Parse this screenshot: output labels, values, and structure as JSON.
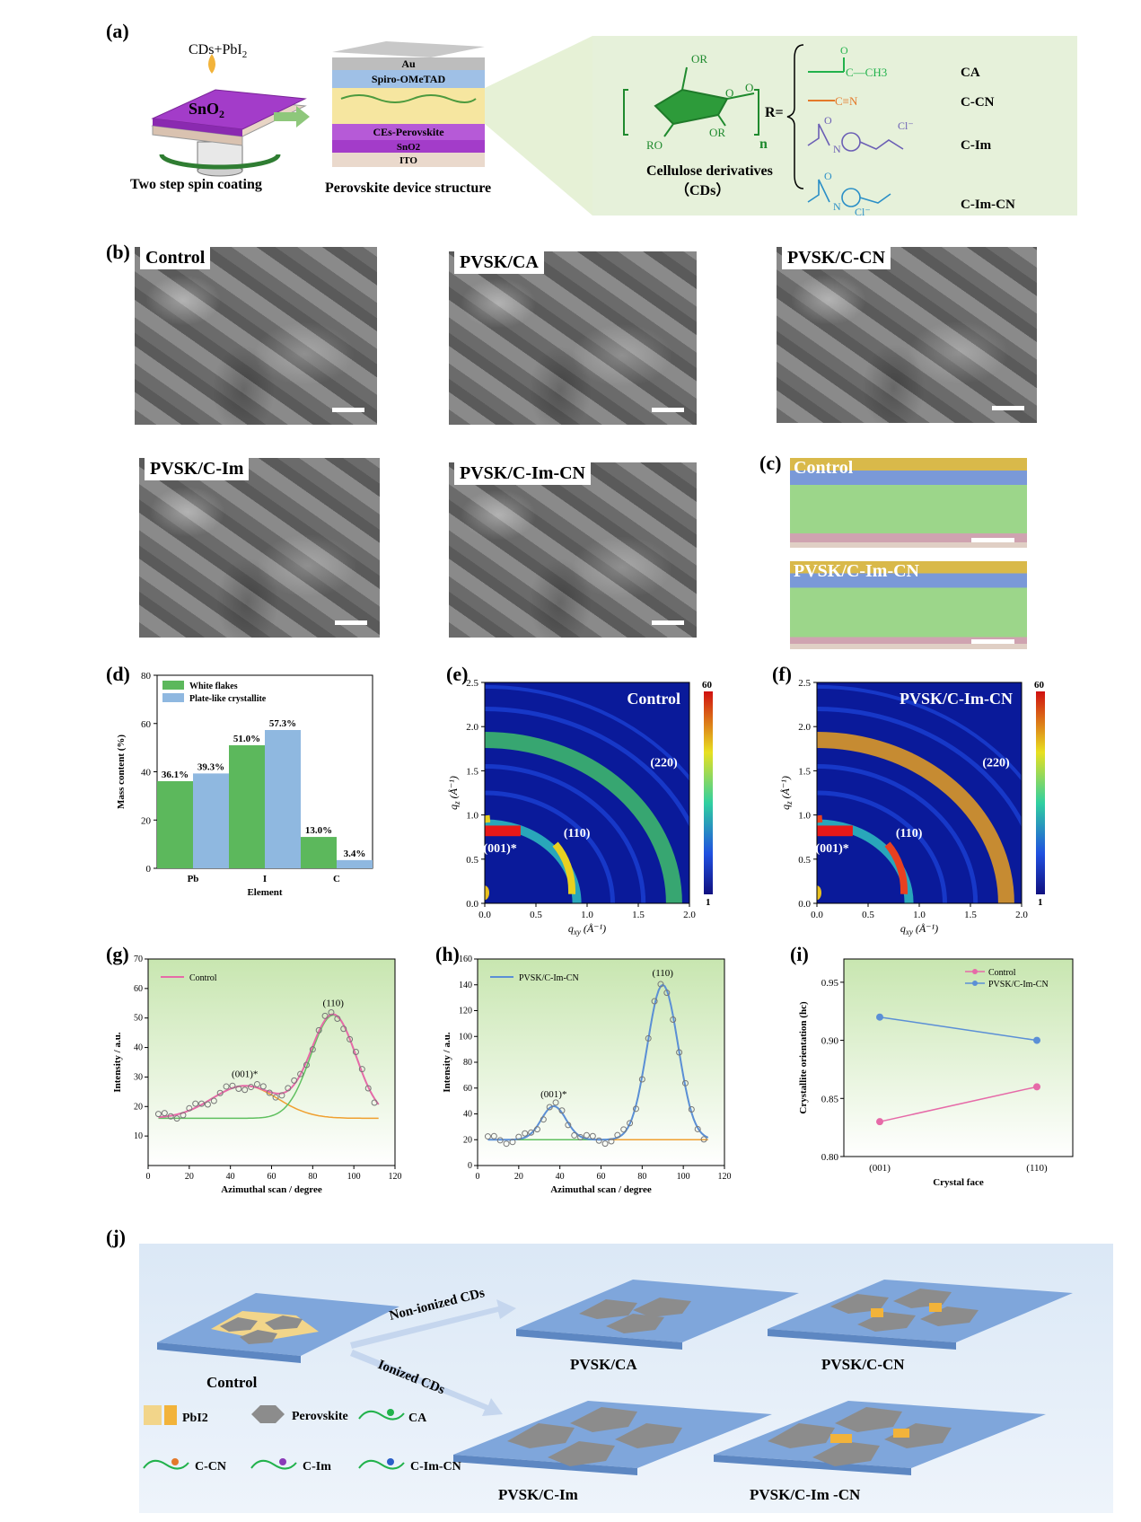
{
  "panels": {
    "a": {
      "label": "(a)",
      "precursor": "CDs+PbI",
      "precursor_sub": "2",
      "substrate": "SnO",
      "substrate_sub": "2",
      "step_caption": "Two step spin coating",
      "device_caption": "Perovskite device structure",
      "layers": [
        "Au",
        "Spiro-OMeTAD",
        "CEs-Perovskite",
        "SnO2",
        "ITO"
      ],
      "chem": {
        "or_top": "OR",
        "or_left": "RO",
        "or_right": "OR",
        "o_ring": "O",
        "o_link": "O",
        "n": "n",
        "r_eq": "R=",
        "caption_1": "Cellulose derivatives",
        "caption_2": "（CDs）",
        "groups": [
          {
            "name": "CA",
            "formula": "C—CH3",
            "o": "O"
          },
          {
            "name": "C-CN",
            "formula": "C≡N"
          },
          {
            "name": "C-Im",
            "ion": "Cl⁻",
            "n_label": "N",
            "o": "O"
          },
          {
            "name": "C-Im-CN",
            "ion": "Cl⁻",
            "n_label": "N",
            "o": "O"
          }
        ]
      }
    },
    "b": {
      "label": "(b)",
      "images": [
        "Control",
        "PVSK/CA",
        "PVSK/C-CN",
        "PVSK/C-Im",
        "PVSK/C-Im-CN"
      ]
    },
    "c": {
      "label": "(c)",
      "images": [
        "Control",
        "PVSK/C-Im-CN"
      ]
    },
    "d": {
      "label": "(d)",
      "chart_data": {
        "type": "bar",
        "categories": [
          "Pb",
          "I",
          "C"
        ],
        "series": [
          {
            "name": "White flakes",
            "values": [
              36.1,
              51.0,
              13.0
            ],
            "labels": [
              "36.1%",
              "51.0%",
              "13.0%"
            ],
            "color": "#5cb85c"
          },
          {
            "name": "Plate-like crystallite",
            "values": [
              39.3,
              57.3,
              3.4
            ],
            "labels": [
              "39.3%",
              "57.3%",
              "3.4%"
            ],
            "color": "#8fb8e0"
          }
        ],
        "xlabel": "Element",
        "ylabel": "Mass content (%)",
        "ylim": [
          0,
          80
        ],
        "yticks": [
          0,
          20,
          40,
          60,
          80
        ],
        "legend": "top-left"
      }
    },
    "e": {
      "label": "(e)",
      "chart_data": {
        "type": "heatmap",
        "title": "Control",
        "xlabel": "q",
        "xlabel_sub": "xy",
        "xlabel_unit": "(Å⁻¹)",
        "ylabel": "q",
        "ylabel_sub": "z",
        "ylabel_unit": "(Å⁻¹)",
        "xlim": [
          0,
          2.0
        ],
        "ylim": [
          0,
          2.5
        ],
        "xticks": [
          "0.0",
          "0.5",
          "1.0",
          "1.5",
          "2.0"
        ],
        "yticks": [
          "0.0",
          "0.5",
          "1.0",
          "1.5",
          "2.0",
          "2.5"
        ],
        "colorbar": {
          "max": "60",
          "min": "1"
        },
        "annotations": [
          "(220)",
          "(110)",
          "(001)*"
        ]
      }
    },
    "f": {
      "label": "(f)",
      "chart_data": {
        "type": "heatmap",
        "title": "PVSK/C-Im-CN",
        "xlabel": "q",
        "xlabel_sub": "xy",
        "xlabel_unit": "(Å⁻¹)",
        "ylabel": "q",
        "ylabel_sub": "z",
        "ylabel_unit": "(Å⁻¹)",
        "xlim": [
          0,
          2.0
        ],
        "ylim": [
          0,
          2.5
        ],
        "xticks": [
          "0.0",
          "0.5",
          "1.0",
          "1.5",
          "2.0"
        ],
        "yticks": [
          "0.0",
          "0.5",
          "1.0",
          "1.5",
          "2.0",
          "2.5"
        ],
        "colorbar": {
          "max": "60",
          "min": "1"
        },
        "annotations": [
          "(220)",
          "(110)",
          "(001)*"
        ]
      }
    },
    "g": {
      "label": "(g)",
      "chart_data": {
        "type": "scatter",
        "legend": [
          "Control"
        ],
        "xlabel": "Azimuthal scan / degree",
        "ylabel": "Intensity / a.u.",
        "xlim": [
          0,
          120
        ],
        "ylim": [
          0,
          70
        ],
        "xticks": [
          0,
          20,
          40,
          60,
          80,
          100,
          120
        ],
        "yticks": [
          10,
          20,
          30,
          40,
          50,
          60,
          70
        ],
        "peak_labels": [
          "(001)*",
          "(110)"
        ],
        "peaks": [
          {
            "center": 47,
            "height": 11,
            "width": 16
          },
          {
            "center": 90,
            "height": 35,
            "width": 11
          }
        ],
        "baseline": 16
      }
    },
    "h": {
      "label": "(h)",
      "chart_data": {
        "type": "scatter",
        "legend": [
          "PVSK/C-Im-CN"
        ],
        "xlabel": "Azimuthal scan / degree",
        "ylabel": "Intensity / a.u.",
        "xlim": [
          0,
          120
        ],
        "ylim": [
          0,
          160
        ],
        "xticks": [
          0,
          20,
          40,
          60,
          80,
          100,
          120
        ],
        "yticks": [
          0,
          20,
          40,
          60,
          80,
          100,
          120,
          140,
          160
        ],
        "peak_labels": [
          "(001)*",
          "(110)"
        ],
        "peaks": [
          {
            "center": 37,
            "height": 26,
            "width": 6
          },
          {
            "center": 90,
            "height": 120,
            "width": 7.5
          }
        ],
        "baseline": 20
      }
    },
    "i": {
      "label": "(i)",
      "chart_data": {
        "type": "line",
        "categories": [
          "(001)",
          "(110)"
        ],
        "series": [
          {
            "name": "Control",
            "values": [
              0.83,
              0.86
            ],
            "color": "#e66aa8"
          },
          {
            "name": "PVSK/C-Im-CN",
            "values": [
              0.92,
              0.9
            ],
            "color": "#5b8fd6"
          }
        ],
        "xlabel": "Crystal face",
        "ylabel": "Crystallite orientation (hc)",
        "ylim": [
          0.8,
          0.97
        ],
        "yticks": [
          "0.80",
          "0.85",
          "0.90",
          "0.95"
        ],
        "legend": "top-right"
      }
    },
    "j": {
      "label": "(j)",
      "arrow_top": "Non-ionized CDs",
      "arrow_bottom": "Ionized CDs",
      "captions": [
        "Control",
        "PVSK/CA",
        "PVSK/C-CN",
        "PVSK/C-Im",
        "PVSK/C-Im -CN"
      ],
      "legend": [
        {
          "label": "PbI2",
          "icon": "pbi2-flake-icon"
        },
        {
          "label": "Perovskite",
          "icon": "hexagon-icon"
        },
        {
          "label": "CA",
          "icon": "green-chain-icon"
        },
        {
          "label": "C-CN",
          "icon": "orange-chain-icon"
        },
        {
          "label": "C-Im",
          "icon": "purple-chain-icon"
        },
        {
          "label": "C-Im-CN",
          "icon": "blue-chain-icon"
        }
      ]
    }
  }
}
